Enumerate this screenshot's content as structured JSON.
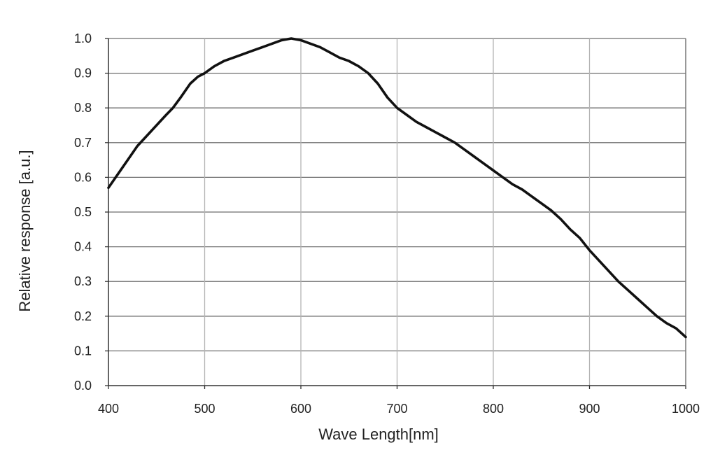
{
  "chart_data": {
    "type": "line",
    "title": "",
    "xlabel": "Wave Length[nm]",
    "ylabel": "Relative response [a.u.]",
    "xlim": [
      400,
      1000
    ],
    "ylim": [
      0.0,
      1.0
    ],
    "xticks": [
      400,
      500,
      600,
      700,
      800,
      900,
      1000
    ],
    "xtick_labels": [
      "400",
      "500",
      "600",
      "700",
      "800",
      "900",
      "1000"
    ],
    "yticks": [
      0.0,
      0.1,
      0.2,
      0.3,
      0.4,
      0.5,
      0.6,
      0.7,
      0.8,
      0.9,
      1.0
    ],
    "ytick_labels": [
      "0.0",
      "0.1",
      "0.2",
      "0.3",
      "0.4",
      "0.5",
      "0.6",
      "0.7",
      "0.8",
      "0.9",
      "1.0"
    ],
    "grid": true,
    "legend": "none",
    "series": [
      {
        "name": "Relative response",
        "color": "#111111",
        "x": [
          400,
          410,
          420,
          430,
          440,
          450,
          460,
          467,
          475,
          485,
          493,
          500,
          510,
          520,
          530,
          540,
          550,
          560,
          570,
          580,
          590,
          600,
          610,
          620,
          630,
          640,
          650,
          660,
          670,
          680,
          690,
          700,
          710,
          720,
          730,
          740,
          750,
          760,
          770,
          780,
          790,
          800,
          810,
          820,
          830,
          840,
          850,
          860,
          870,
          880,
          890,
          900,
          910,
          920,
          930,
          940,
          950,
          960,
          970,
          980,
          990,
          1000
        ],
        "y": [
          0.57,
          0.61,
          0.65,
          0.69,
          0.72,
          0.75,
          0.78,
          0.8,
          0.83,
          0.87,
          0.89,
          0.9,
          0.92,
          0.935,
          0.945,
          0.955,
          0.965,
          0.975,
          0.985,
          0.995,
          1.0,
          0.995,
          0.985,
          0.975,
          0.96,
          0.945,
          0.935,
          0.92,
          0.9,
          0.87,
          0.83,
          0.8,
          0.78,
          0.76,
          0.745,
          0.73,
          0.715,
          0.7,
          0.68,
          0.66,
          0.64,
          0.62,
          0.6,
          0.58,
          0.565,
          0.545,
          0.525,
          0.505,
          0.48,
          0.45,
          0.425,
          0.39,
          0.36,
          0.33,
          0.3,
          0.275,
          0.25,
          0.225,
          0.2,
          0.18,
          0.165,
          0.14
        ]
      }
    ]
  }
}
